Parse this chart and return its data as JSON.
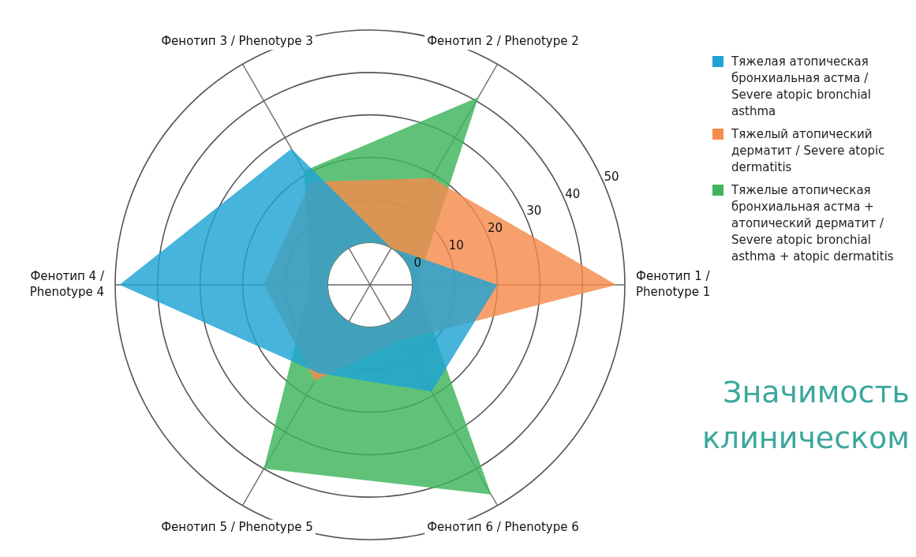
{
  "chart_data": {
    "type": "radar",
    "categories": [
      "Фенотип 2 / Phenotype 2",
      "Фенотип 1 / Phenotype 1",
      "Фенотип 6 / Phenotype 6",
      "Фенотип 5 / Phenotype 5",
      "Фенотип 4 / Phenotype 4",
      "Фенотип 3 / Phenotype 3"
    ],
    "series": [
      {
        "name": "Тяжелая атопическая бронхиальная астма / Severe atopic bronchial asthma",
        "color": "#1fa3d4",
        "values": [
          0,
          20,
          19,
          14,
          49,
          27
        ]
      },
      {
        "name": "Тяжелый атопический дерматит / Severe atopic dermatitis",
        "color": "#f58b4c",
        "values": [
          19,
          48,
          5,
          16,
          15,
          18
        ]
      },
      {
        "name": "Тяжелые атопическая бронхиальная астма + атопический дерматит / Severe atopic bronchial asthma + atopic dermatitis",
        "color": "#3cb55a",
        "values": [
          41,
          1,
          47,
          40,
          4,
          21
        ]
      }
    ],
    "ylim": [
      -10,
      50
    ],
    "yticks": [
      0,
      10,
      20,
      30,
      40,
      50
    ],
    "grid": true,
    "legend": "right",
    "annotations": [
      "Значимость",
      "клиническом"
    ]
  }
}
